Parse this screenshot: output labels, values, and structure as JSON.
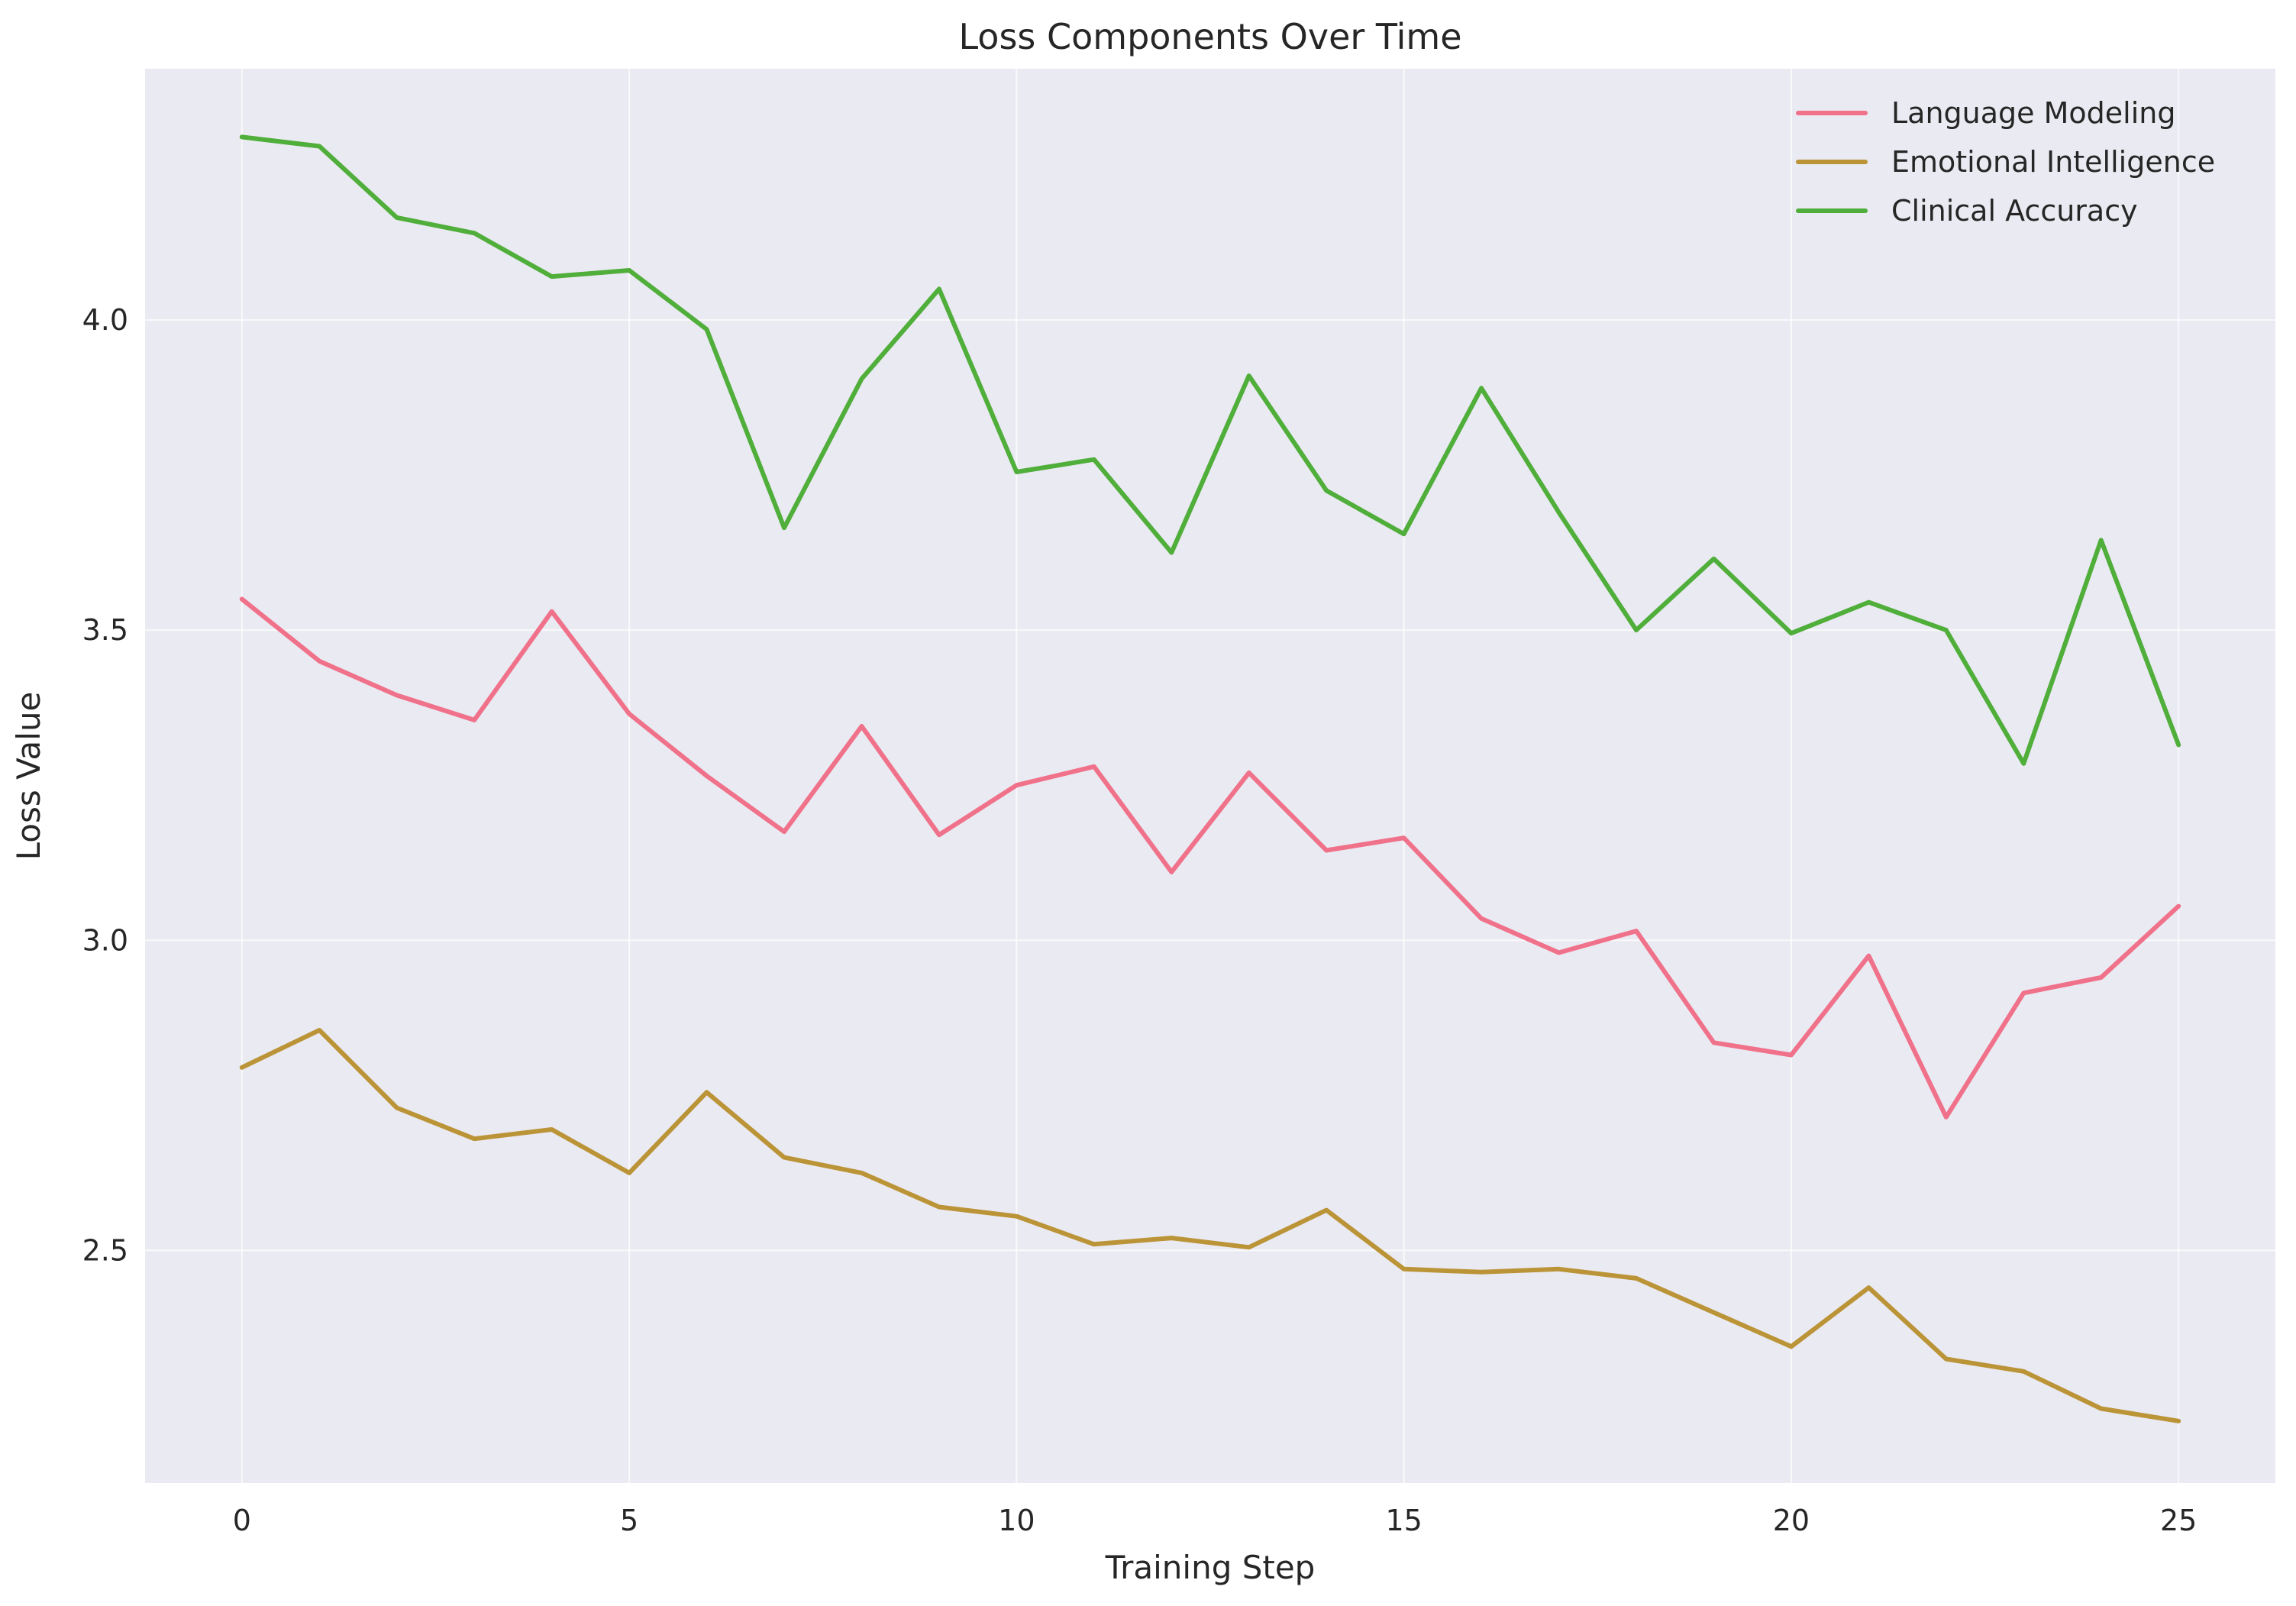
{
  "chart_data": {
    "type": "line",
    "title": "Loss Components Over Time",
    "xlabel": "Training Step",
    "ylabel": "Loss Value",
    "x": [
      0,
      1,
      2,
      3,
      4,
      5,
      6,
      7,
      8,
      9,
      10,
      11,
      12,
      13,
      14,
      15,
      16,
      17,
      18,
      19,
      20,
      21,
      22,
      23,
      24,
      25
    ],
    "xlim": [
      -1.25,
      26.25
    ],
    "ylim": [
      2.125,
      4.405
    ],
    "xticks": [
      0,
      5,
      10,
      15,
      20,
      25
    ],
    "yticks": [
      2.5,
      3.0,
      3.5,
      4.0
    ],
    "ytick_labels": [
      "2.5",
      "3.0",
      "3.5",
      "4.0"
    ],
    "xtick_labels": [
      "0",
      "5",
      "10",
      "15",
      "20",
      "25"
    ],
    "grid": true,
    "legend_position": "top-right",
    "background_color": "#eaeaf2",
    "grid_color": "#ffffff",
    "series": [
      {
        "name": "Language Modeling",
        "color": "#f0718a",
        "values": [
          3.55,
          3.45,
          3.395,
          3.355,
          3.53,
          3.365,
          3.265,
          3.175,
          3.345,
          3.17,
          3.25,
          3.28,
          3.11,
          3.27,
          3.145,
          3.165,
          3.035,
          2.98,
          3.015,
          2.835,
          2.815,
          2.975,
          2.715,
          2.915,
          2.94,
          3.055
        ]
      },
      {
        "name": "Emotional Intelligence",
        "color": "#bb9438",
        "values": [
          2.795,
          2.855,
          2.73,
          2.68,
          2.695,
          2.625,
          2.755,
          2.65,
          2.625,
          2.57,
          2.555,
          2.51,
          2.52,
          2.505,
          2.565,
          2.47,
          2.465,
          2.47,
          2.455,
          2.4,
          2.345,
          2.44,
          2.325,
          2.305,
          2.245,
          2.225
        ]
      },
      {
        "name": "Clinical Accuracy",
        "color": "#50ae3a",
        "values": [
          4.295,
          4.28,
          4.165,
          4.14,
          4.07,
          4.08,
          3.985,
          3.665,
          3.905,
          4.05,
          3.755,
          3.775,
          3.625,
          3.91,
          3.725,
          3.655,
          3.89,
          3.69,
          3.5,
          3.615,
          3.495,
          3.545,
          3.5,
          3.285,
          3.645,
          3.315
        ]
      }
    ]
  }
}
